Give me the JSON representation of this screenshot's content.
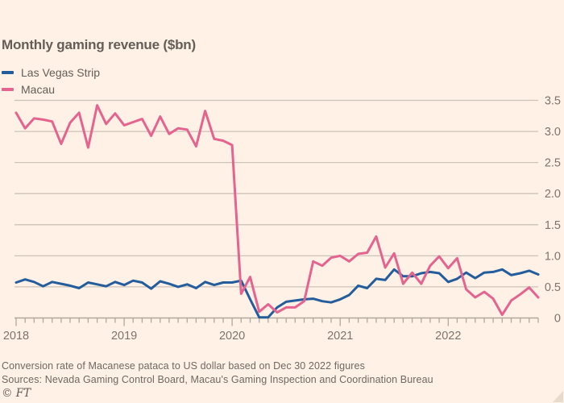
{
  "page": {
    "background": "#fff1e5"
  },
  "header": {
    "title": "Monthly gaming revenue ($bn)"
  },
  "legend": [
    {
      "label": "Las Vegas Strip",
      "color": "#235d9b"
    },
    {
      "label": "Macau",
      "color": "#e4638f"
    }
  ],
  "footer": {
    "note": "Conversion rate of Macanese pataca to US dollar based on Dec 30 2022 figures",
    "sources": "Sources: Nevada Gaming Control Board, Macau's Gaming Inspection and Coordination Bureau",
    "credit": "© FT"
  },
  "chart_data": {
    "type": "line",
    "title": "Monthly gaming revenue ($bn)",
    "xlabel": "",
    "ylabel": "$bn",
    "ylim": [
      0,
      3.5
    ],
    "grid": true,
    "legend_position": "top-left",
    "y_ticks": {
      "values": [
        0,
        0.5,
        1.0,
        1.5,
        2.0,
        2.5,
        3.0,
        3.5
      ],
      "labels": [
        "0",
        "0.5",
        "1.0",
        "1.5",
        "2.0",
        "2.5",
        "3.0",
        "3.5"
      ]
    },
    "x_year_ticks": [
      {
        "label": "2018",
        "month_index": 0
      },
      {
        "label": "2019",
        "month_index": 12
      },
      {
        "label": "2020",
        "month_index": 24
      },
      {
        "label": "2021",
        "month_index": 36
      },
      {
        "label": "2022",
        "month_index": 48
      }
    ],
    "months": [
      "2018-01",
      "2018-02",
      "2018-03",
      "2018-04",
      "2018-05",
      "2018-06",
      "2018-07",
      "2018-08",
      "2018-09",
      "2018-10",
      "2018-11",
      "2018-12",
      "2019-01",
      "2019-02",
      "2019-03",
      "2019-04",
      "2019-05",
      "2019-06",
      "2019-07",
      "2019-08",
      "2019-09",
      "2019-10",
      "2019-11",
      "2019-12",
      "2020-01",
      "2020-02",
      "2020-03",
      "2020-04",
      "2020-05",
      "2020-06",
      "2020-07",
      "2020-08",
      "2020-09",
      "2020-10",
      "2020-11",
      "2020-12",
      "2021-01",
      "2021-02",
      "2021-03",
      "2021-04",
      "2021-05",
      "2021-06",
      "2021-07",
      "2021-08",
      "2021-09",
      "2021-10",
      "2021-11",
      "2021-12",
      "2022-01",
      "2022-02",
      "2022-03",
      "2022-04",
      "2022-05",
      "2022-06",
      "2022-07",
      "2022-08",
      "2022-09",
      "2022-10",
      "2022-11"
    ],
    "series": [
      {
        "name": "Las Vegas Strip",
        "color": "#235d9b",
        "values": [
          0.57,
          0.62,
          0.58,
          0.51,
          0.58,
          0.55,
          0.52,
          0.48,
          0.57,
          0.54,
          0.51,
          0.58,
          0.53,
          0.6,
          0.57,
          0.47,
          0.59,
          0.55,
          0.5,
          0.54,
          0.48,
          0.58,
          0.53,
          0.57,
          0.57,
          0.6,
          0.3,
          0.01,
          0.01,
          0.17,
          0.26,
          0.28,
          0.3,
          0.31,
          0.27,
          0.25,
          0.3,
          0.37,
          0.52,
          0.48,
          0.63,
          0.61,
          0.78,
          0.67,
          0.67,
          0.72,
          0.74,
          0.72,
          0.58,
          0.63,
          0.73,
          0.64,
          0.73,
          0.74,
          0.78,
          0.69,
          0.72,
          0.76,
          0.7
        ]
      },
      {
        "name": "Macau",
        "color": "#e4638f",
        "values": [
          3.3,
          3.05,
          3.21,
          3.19,
          3.16,
          2.8,
          3.14,
          3.3,
          2.74,
          3.42,
          3.12,
          3.29,
          3.1,
          3.15,
          3.2,
          2.93,
          3.24,
          2.96,
          3.05,
          3.03,
          2.76,
          3.33,
          2.88,
          2.85,
          2.78,
          0.39,
          0.66,
          0.1,
          0.22,
          0.09,
          0.17,
          0.17,
          0.27,
          0.91,
          0.84,
          0.97,
          1.0,
          0.91,
          1.03,
          1.05,
          1.31,
          0.81,
          1.04,
          0.55,
          0.73,
          0.55,
          0.84,
          0.99,
          0.8,
          0.96,
          0.46,
          0.33,
          0.42,
          0.31,
          0.05,
          0.28,
          0.38,
          0.49,
          0.33
        ]
      }
    ],
    "styles": {
      "gridline": "#ccc3b8",
      "axis": "#b0a79d",
      "tick_label": "#7d756d"
    }
  }
}
